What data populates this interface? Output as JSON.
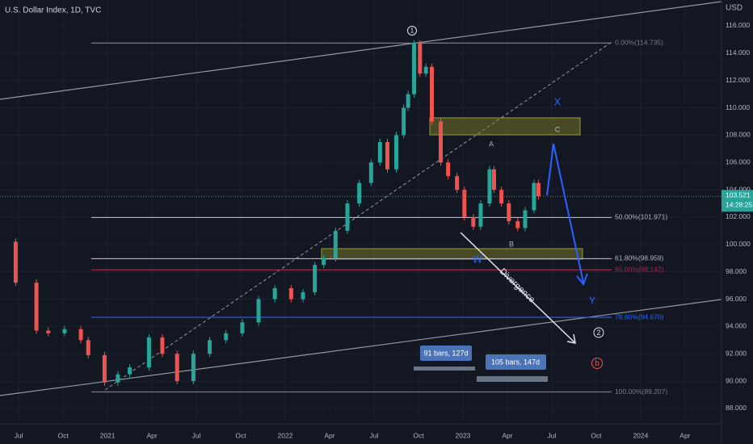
{
  "chart_data": {
    "type": "candlestick",
    "title": "U.S. Dollar Index, 1D, TVC",
    "currency": "USD",
    "countdown": "14:28:25",
    "x": [
      4.8,
      5.8,
      7.2,
      8.0,
      9.1,
      10.2,
      10.7,
      11.8,
      12.7,
      13.5,
      14.8,
      15.7,
      16.7,
      17.8,
      18.9,
      20.0,
      21.1,
      22.2,
      23.3,
      24.4,
      25.2,
      26.0,
      26.6,
      27.4,
      28.2,
      29.0,
      29.8,
      30.4,
      30.9,
      31.5,
      32.0,
      32.3,
      32.7,
      33.1,
      33.5,
      33.9,
      34.5,
      35.0,
      35.6,
      36.1,
      36.7,
      37.2,
      37.8,
      38.1,
      38.6,
      39.1,
      39.7,
      40.2,
      40.8,
      41.1
    ],
    "values": [
      100.2,
      97.2,
      93.7,
      93.5,
      93.8,
      93.0,
      91.9,
      89.9,
      90.5,
      91.0,
      93.2,
      92.0,
      90.0,
      92.0,
      93.0,
      93.5,
      94.3,
      96.0,
      96.8,
      96.0,
      96.5,
      98.5,
      99.0,
      101.0,
      103.0,
      104.5,
      106.0,
      107.5,
      105.5,
      108.0,
      110.0,
      111.0,
      114.7,
      112.5,
      113.0,
      109.0,
      106.0,
      105.0,
      104.0,
      102.0,
      101.3,
      103.0,
      105.5,
      104.0,
      103.0,
      101.7,
      101.2,
      102.5,
      104.5,
      103.521
    ],
    "up_color": "#26a69a",
    "down_color": "#ef5350",
    "xlim": [
      4.74,
      53.46
    ],
    "ylim": [
      87.17,
      117.89
    ],
    "xticks": [
      {
        "value": 6,
        "label": "Jul"
      },
      {
        "value": 9,
        "label": "Oct"
      },
      {
        "value": 12,
        "label": "2021"
      },
      {
        "value": 15,
        "label": "Apr"
      },
      {
        "value": 18,
        "label": "Jul"
      },
      {
        "value": 21,
        "label": "Oct"
      },
      {
        "value": 24,
        "label": "2022"
      },
      {
        "value": 27,
        "label": "Apr"
      },
      {
        "value": 30,
        "label": "Jul"
      },
      {
        "value": 33,
        "label": "Oct"
      },
      {
        "value": 36,
        "label": "2023"
      },
      {
        "value": 39,
        "label": "Apr"
      },
      {
        "value": 42,
        "label": "Jul"
      },
      {
        "value": 45,
        "label": "Oct"
      },
      {
        "value": 48,
        "label": "2024"
      },
      {
        "value": 51,
        "label": "Apr"
      }
    ],
    "yticks": [
      {
        "value": 88,
        "label": "88.000"
      },
      {
        "value": 90,
        "label": "90.000"
      },
      {
        "value": 92,
        "label": "92.000"
      },
      {
        "value": 94,
        "label": "94.000"
      },
      {
        "value": 96,
        "label": "96.000"
      },
      {
        "value": 98,
        "label": "98.000"
      },
      {
        "value": 100,
        "label": "100.000"
      },
      {
        "value": 102,
        "label": "102.000"
      },
      {
        "value": 104,
        "label": "104.000"
      },
      {
        "value": 106,
        "label": "106.000"
      },
      {
        "value": 108,
        "label": "108.000"
      },
      {
        "value": 110,
        "label": "110.000"
      },
      {
        "value": 112,
        "label": "112.000"
      },
      {
        "value": 114,
        "label": "114.000"
      },
      {
        "value": 116,
        "label": "116.000"
      }
    ],
    "grid": true,
    "fib_levels": [
      {
        "label": "0.00%(114.735)",
        "value": 114.735,
        "color": "#787b86"
      },
      {
        "label": "50.00%(101.971)",
        "value": 101.971,
        "color": "#b2b5be"
      },
      {
        "label": "61.80%(98.959)",
        "value": 98.959,
        "color": "#b2b5be"
      },
      {
        "label": "65.00%(98.142)",
        "value": 98.142,
        "color": "#a3294f"
      },
      {
        "label": "78.60%(94.670)",
        "value": 94.67,
        "color": "#2962ff"
      },
      {
        "label": "100.00%(89.207)",
        "value": 89.207,
        "color": "#787b86"
      }
    ],
    "annotations": [
      "1",
      "A",
      "B",
      "C",
      "X",
      "W",
      "Y",
      "2",
      "b",
      "Divergence",
      "91 bars, 127d",
      "105 bars, 147d"
    ]
  }
}
